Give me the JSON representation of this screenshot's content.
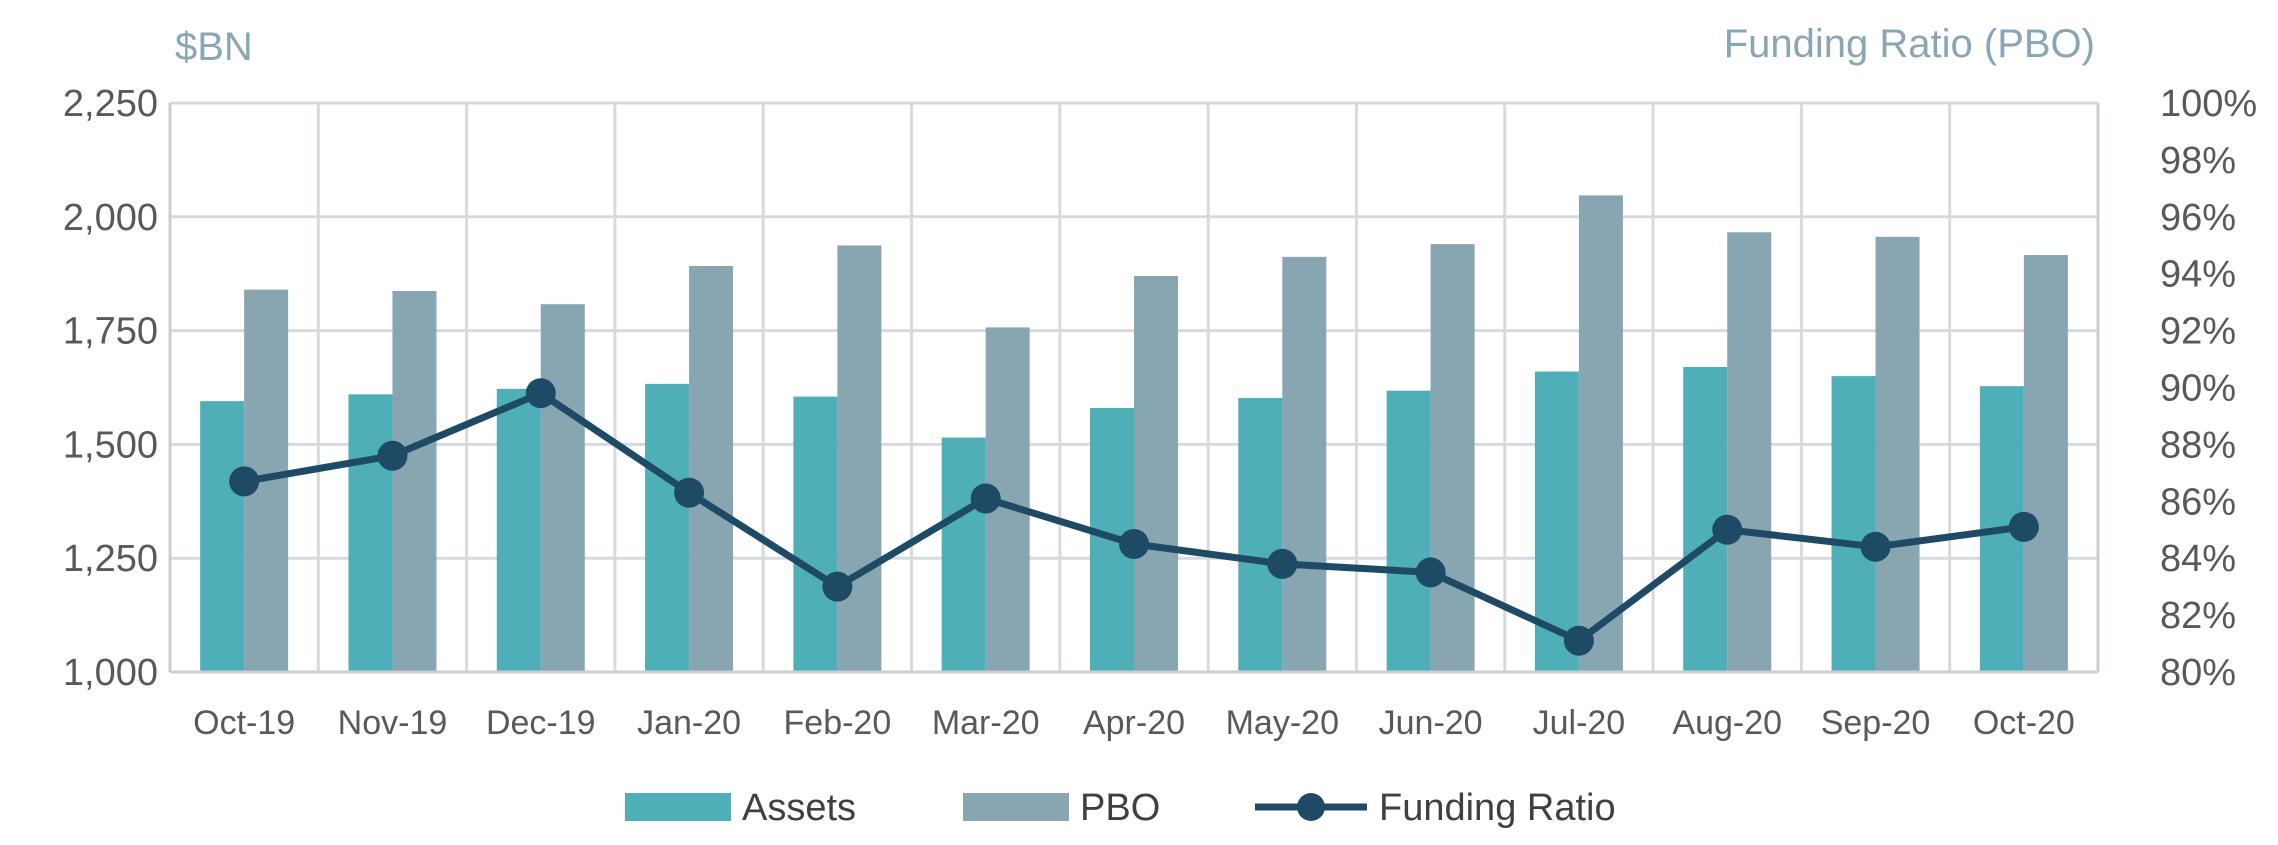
{
  "chart_data": {
    "type": "bar",
    "left_axis_label": "$BN",
    "right_axis_label": "Funding Ratio (PBO)",
    "categories": [
      "Oct-19",
      "Nov-19",
      "Dec-19",
      "Jan-20",
      "Feb-20",
      "Mar-20",
      "Apr-20",
      "May-20",
      "Jun-20",
      "Jul-20",
      "Aug-20",
      "Sep-20",
      "Oct-20"
    ],
    "series": [
      {
        "name": "Assets",
        "type": "bar",
        "axis": "left",
        "color": "#4eafb9",
        "values": [
          1595,
          1610,
          1622,
          1633,
          1605,
          1515,
          1580,
          1602,
          1618,
          1660,
          1670,
          1650,
          1628
        ]
      },
      {
        "name": "PBO",
        "type": "bar",
        "axis": "left",
        "color": "#88a5b2",
        "values": [
          1840,
          1837,
          1808,
          1892,
          1937,
          1757,
          1870,
          1912,
          1940,
          2047,
          1966,
          1956,
          1916
        ]
      },
      {
        "name": "Funding Ratio",
        "type": "line",
        "axis": "right",
        "color": "#1e4a66",
        "values": [
          86.7,
          87.6,
          89.8,
          86.3,
          83.0,
          86.1,
          84.5,
          83.8,
          83.5,
          81.1,
          85.0,
          84.4,
          85.1
        ]
      }
    ],
    "left_axis": {
      "min": 1000,
      "max": 2250,
      "ticks": [
        "1,000",
        "1,250",
        "1,500",
        "1,750",
        "2,000",
        "2,250"
      ]
    },
    "right_axis": {
      "min": 80,
      "max": 100,
      "ticks": [
        "80%",
        "82%",
        "84%",
        "86%",
        "88%",
        "90%",
        "92%",
        "94%",
        "96%",
        "98%",
        "100%"
      ]
    },
    "grid": true,
    "legend_position": "bottom"
  }
}
